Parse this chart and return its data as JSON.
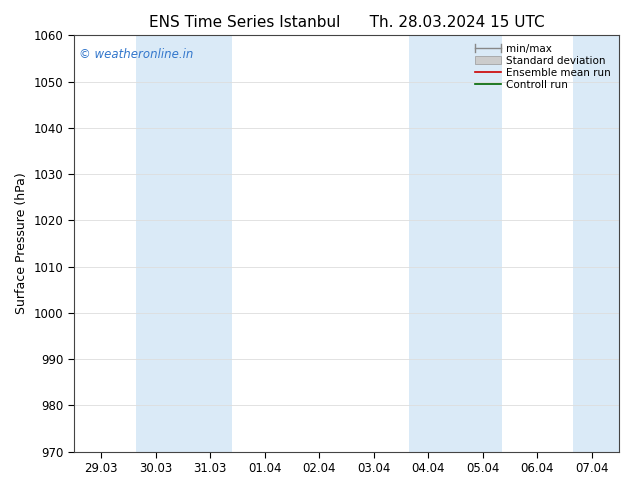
{
  "title1": "ENS Time Series Istanbul",
  "title2": "Th. 28.03.2024 15 UTC",
  "ylabel": "Surface Pressure (hPa)",
  "ylim": [
    970,
    1060
  ],
  "yticks": [
    970,
    980,
    990,
    1000,
    1010,
    1020,
    1030,
    1040,
    1050,
    1060
  ],
  "xlabels": [
    "29.03",
    "30.03",
    "31.03",
    "01.04",
    "02.04",
    "03.04",
    "04.04",
    "05.04",
    "06.04",
    "07.04"
  ],
  "band_color": "#daeaf7",
  "watermark": "© weatheronline.in",
  "watermark_color": "#3377cc",
  "legend_labels": [
    "min/max",
    "Standard deviation",
    "Ensemble mean run",
    "Controll run"
  ],
  "legend_line_colors": [
    "#888888",
    "#cccccc",
    "#cc0000",
    "#006600"
  ],
  "bg_color": "#ffffff",
  "spine_color": "#444444",
  "grid_color": "#dddddd",
  "title_fontsize": 11,
  "axis_label_fontsize": 9,
  "tick_fontsize": 8.5,
  "legend_fontsize": 7.5
}
